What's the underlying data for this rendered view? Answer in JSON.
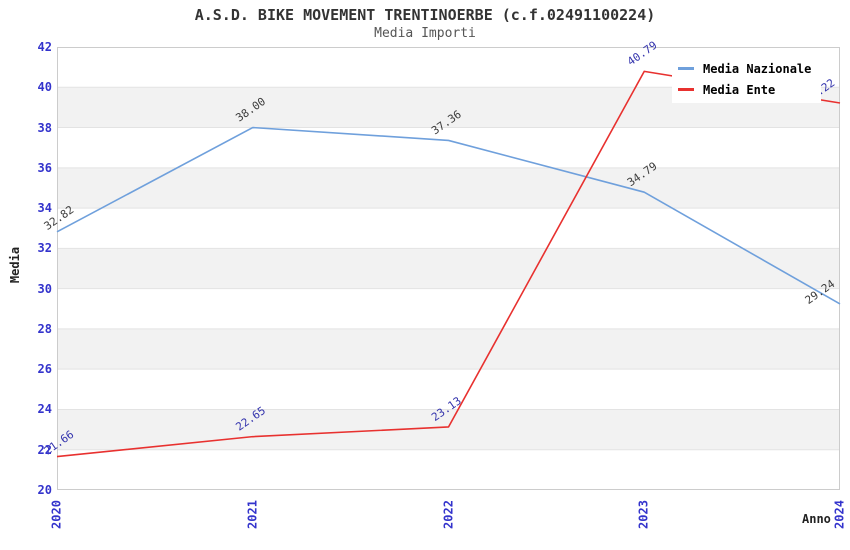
{
  "title": "A.S.D. BIKE MOVEMENT TRENTINOERBE (c.f.02491100224)",
  "subtitle": "Media Importi",
  "axes": {
    "y_title": "Media",
    "x_title": "Anno",
    "y_tick_labels": [
      "20",
      "22",
      "24",
      "26",
      "28",
      "30",
      "32",
      "34",
      "36",
      "38",
      "40",
      "42"
    ],
    "x_tick_labels": [
      "2020",
      "2021",
      "2022",
      "2023",
      "2024"
    ],
    "tick_label_color": "#3333cc"
  },
  "legend": {
    "position": "top-right",
    "items": [
      {
        "label": "Media Nazionale",
        "color": "#6FA0DC"
      },
      {
        "label": "Media Ente",
        "color": "#E8312F"
      }
    ]
  },
  "colors": {
    "band_light": "#FFFFFF",
    "band_dark": "#F2F2F2",
    "gridline": "#E3E3E3",
    "plot_border": "#CCCCCC",
    "title": "#333333",
    "subtitle": "#555555"
  },
  "chart_data": {
    "type": "line",
    "title": "A.S.D. BIKE MOVEMENT TRENTINOERBE (c.f.02491100224)",
    "subtitle": "Media Importi",
    "xlabel": "Anno",
    "ylabel": "Media",
    "x": [
      2020,
      2021,
      2022,
      2023,
      2024
    ],
    "ylim": [
      20,
      42
    ],
    "ytick_step": 2,
    "grid": true,
    "legend_position": "top-right",
    "series": [
      {
        "name": "Media Nazionale",
        "color": "#6FA0DC",
        "label_color": "#3C3C3C",
        "values": [
          32.82,
          38.0,
          37.36,
          34.79,
          29.24
        ],
        "point_labels": [
          "32.82",
          "38.00",
          "37.36",
          "34.79",
          "29.24"
        ]
      },
      {
        "name": "Media Ente",
        "color": "#E8312F",
        "label_color": "#3434AD",
        "values": [
          21.66,
          22.65,
          23.13,
          40.79,
          39.22
        ],
        "point_labels": [
          "21.66",
          "22.65",
          "23.13",
          "40.79",
          "39.22"
        ]
      }
    ]
  }
}
